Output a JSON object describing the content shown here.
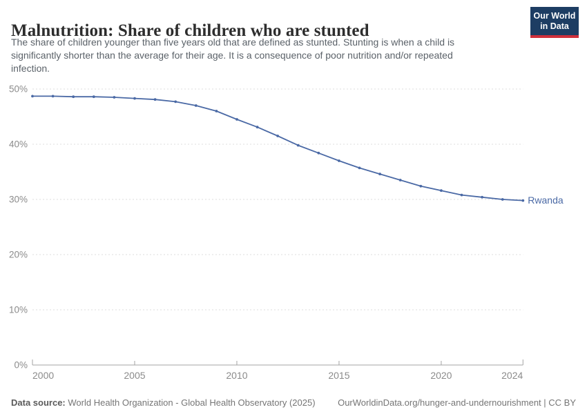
{
  "header": {
    "title": "Malnutrition: Share of children who are stunted",
    "subtitle_lines": [
      "The share of children younger than five years old that are defined as stunted. Stunting is when a child is",
      "significantly shorter than the average for their age. It is a consequence of poor nutrition and/or repeated",
      "infection."
    ],
    "logo": {
      "line1": "Our World",
      "line2": "in Data",
      "bg_color": "#1d3d63",
      "accent_color": "#cf303b"
    }
  },
  "chart_data": {
    "type": "line",
    "title": "Malnutrition: Share of children who are stunted",
    "xlabel": "",
    "ylabel": "",
    "xlim": [
      2000,
      2024
    ],
    "ylim": [
      0,
      50
    ],
    "grid": "horizontal-dashed",
    "legend_position": "end-of-line-label",
    "x": [
      2000,
      2001,
      2002,
      2003,
      2004,
      2005,
      2006,
      2007,
      2008,
      2009,
      2010,
      2011,
      2012,
      2013,
      2014,
      2015,
      2016,
      2017,
      2018,
      2019,
      2020,
      2021,
      2022,
      2023,
      2024
    ],
    "series": [
      {
        "name": "Rwanda",
        "color": "#4a69a5",
        "values": [
          48.7,
          48.7,
          48.6,
          48.6,
          48.5,
          48.3,
          48.1,
          47.7,
          47.0,
          46.0,
          44.5,
          43.1,
          41.5,
          39.8,
          38.4,
          37.0,
          35.7,
          34.6,
          33.5,
          32.4,
          31.6,
          30.8,
          30.4,
          30.0,
          29.8
        ]
      }
    ],
    "yticks": [
      {
        "value": 0,
        "label": "0%"
      },
      {
        "value": 10,
        "label": "10%"
      },
      {
        "value": 20,
        "label": "20%"
      },
      {
        "value": 30,
        "label": "30%"
      },
      {
        "value": 40,
        "label": "40%"
      },
      {
        "value": 50,
        "label": "50%"
      }
    ],
    "xticks": [
      {
        "value": 2000,
        "label": "2000"
      },
      {
        "value": 2005,
        "label": "2005"
      },
      {
        "value": 2010,
        "label": "2010"
      },
      {
        "value": 2015,
        "label": "2015"
      },
      {
        "value": 2020,
        "label": "2020"
      },
      {
        "value": 2024,
        "label": "2024"
      }
    ],
    "style": {
      "grid_color": "#dcdcdc",
      "axis_color": "#a3a3a3",
      "tick_text_color": "#8b8b8b"
    }
  },
  "footer": {
    "source_label": "Data source:",
    "source_text": "World Health Organization - Global Health Observatory (2025)",
    "rights": "OurWorldinData.org/hunger-and-undernourishment | CC BY"
  }
}
